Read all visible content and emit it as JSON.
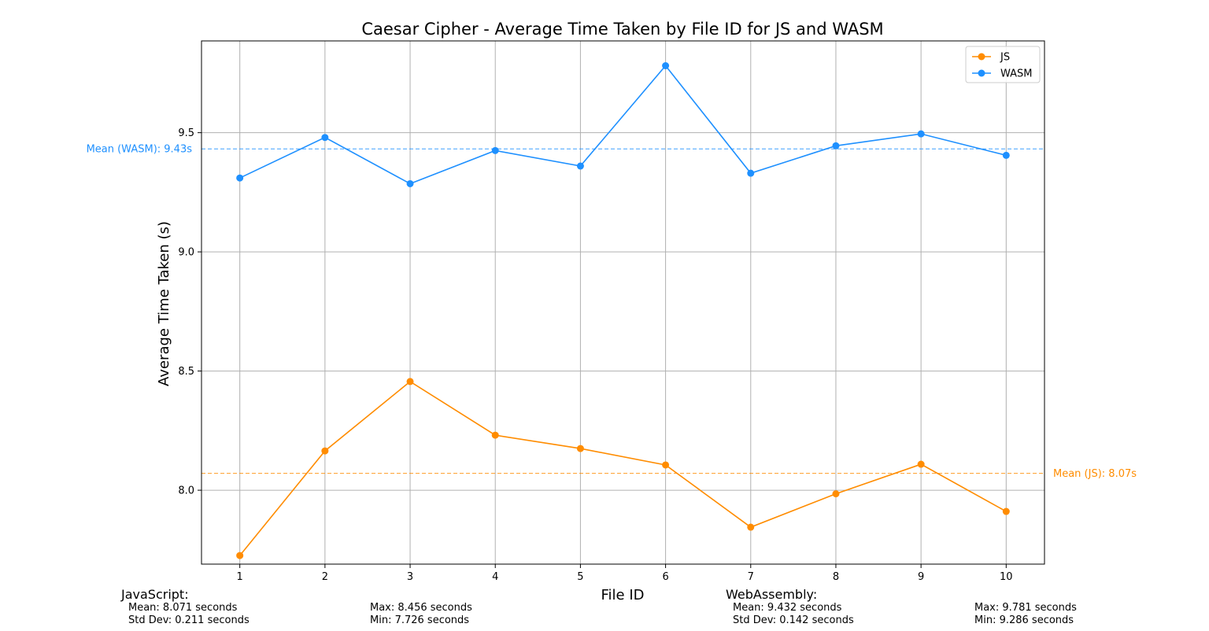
{
  "chart_data": {
    "type": "line",
    "title": "Caesar Cipher - Average Time Taken by File ID for JS and WASM",
    "xlabel": "File ID",
    "ylabel": "Average Time Taken (s)",
    "x": [
      1,
      2,
      3,
      4,
      5,
      6,
      7,
      8,
      9,
      10
    ],
    "xlim": [
      0.55,
      10.45
    ],
    "ylim": [
      7.69,
      9.885
    ],
    "xticks": [
      "1",
      "2",
      "3",
      "4",
      "5",
      "6",
      "7",
      "8",
      "9",
      "10"
    ],
    "yticks": [
      "8.0",
      "8.5",
      "9.0",
      "9.5"
    ],
    "ytick_values": [
      8.0,
      8.5,
      9.0,
      9.5
    ],
    "grid": true,
    "legend_position": "top-right",
    "series": [
      {
        "name": "JS",
        "color": "#ff8c00",
        "values": [
          7.726,
          8.165,
          8.456,
          8.231,
          8.175,
          8.106,
          7.845,
          7.985,
          8.109,
          7.911
        ],
        "mean": 8.071,
        "mean_label": "Mean (JS): 8.07s"
      },
      {
        "name": "WASM",
        "color": "#1e90ff",
        "values": [
          9.31,
          9.48,
          9.286,
          9.425,
          9.36,
          9.781,
          9.33,
          9.445,
          9.495,
          9.405
        ],
        "mean": 9.432,
        "mean_label": "Mean (WASM): 9.43s"
      }
    ]
  },
  "stats": {
    "js": {
      "heading": "JavaScript:",
      "mean": "Mean: 8.071 seconds",
      "std": "Std Dev: 0.211 seconds",
      "max": "Max: 8.456 seconds",
      "min": "Min: 7.726 seconds"
    },
    "wasm": {
      "heading": "WebAssembly:",
      "mean": "Mean: 9.432 seconds",
      "std": "Std Dev: 0.142 seconds",
      "max": "Max: 9.781 seconds",
      "min": "Min: 9.286 seconds"
    }
  }
}
